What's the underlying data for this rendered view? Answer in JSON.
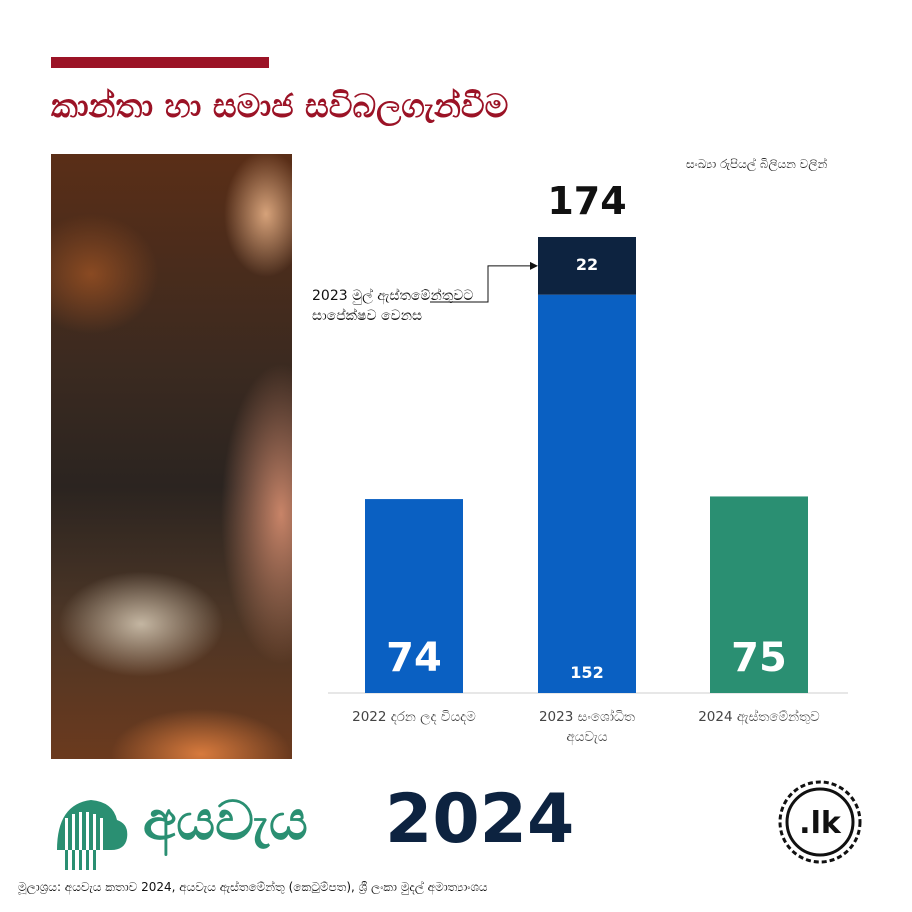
{
  "title": "කාන්තා හා සමාජ සවිබලගැන්වීම",
  "units_note": "සංඛ්‍යා රුපියල් බිලියන වලින්",
  "annotation": {
    "line1": "2023 මුල් ඇස්තමේන්තුවට",
    "line2": "සාපේක්ෂව වෙනස"
  },
  "colors": {
    "accent": "#9b1326",
    "bar_blue": "#0a60c2",
    "bar_navy": "#0d2340",
    "bar_green": "#2a8f72"
  },
  "chart_data": {
    "type": "bar",
    "stacked": true,
    "categories": [
      "2022 දරන ලද වියදම",
      "2023 සංශෝධිත අයවැය",
      "2024 ඇස්තමේන්තුව"
    ],
    "category_lines": [
      [
        "2022 දරන ලද වියදම"
      ],
      [
        "2023 සංශෝධිත",
        "අයවැය"
      ],
      [
        "2024 ඇස්තමේන්තුව"
      ]
    ],
    "series": [
      {
        "values": [
          74,
          152,
          75
        ],
        "colors": [
          "#0a60c2",
          "#0a60c2",
          "#2a8f72"
        ]
      },
      {
        "values": [
          0,
          22,
          0
        ],
        "colors": [
          "#0d2340",
          "#0d2340",
          "#0d2340"
        ]
      }
    ],
    "data_labels": [
      {
        "category": 0,
        "text": "74",
        "size": "big"
      },
      {
        "category": 1,
        "text": "152",
        "size": "small"
      },
      {
        "category": 1,
        "text": "22",
        "size": "small",
        "segment": 1
      },
      {
        "category": 2,
        "text": "75",
        "size": "big"
      }
    ],
    "totals": [
      {
        "category": 1,
        "text": "174"
      }
    ],
    "ylim": [
      0,
      174
    ],
    "grid": false,
    "legend": "none"
  },
  "branding": {
    "word": "අයවැය",
    "year": "2024",
    "badge": ".lk"
  },
  "source": "මූලාශ්‍රය: අයවැය කතාව 2024, අයවැය ඇස්තමේන්තු (කෙටුම්පත), ශ්‍රී ලංකා මුදල් අමාත්‍යාංශය"
}
